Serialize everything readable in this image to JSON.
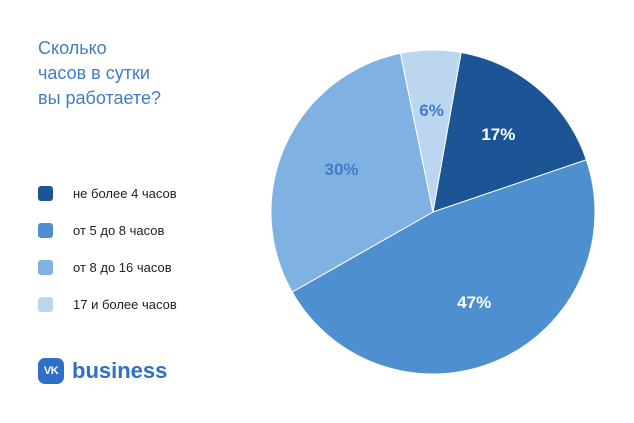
{
  "title_lines": [
    "Сколько",
    "часов в сутки",
    "вы работаете?"
  ],
  "brand": {
    "logo_text": "VK",
    "word": "business"
  },
  "chart_data": {
    "type": "pie",
    "title": "Сколько часов в сутки вы работаете?",
    "start_angle_deg": 10,
    "direction": "clockwise",
    "legend_placement": "left",
    "slices": [
      {
        "name": "не более 4 часов",
        "value": 17,
        "label": "17%",
        "color": "#1c5596",
        "label_color": "#ffffff"
      },
      {
        "name": "от 5 до 8 часов",
        "value": 47,
        "label": "47%",
        "color": "#4e8fd0",
        "label_color": "#ffffff"
      },
      {
        "name": "от 8 до 16 часов",
        "value": 30,
        "label": "30%",
        "color": "#7fb2e3",
        "label_color": "#3f7ec6"
      },
      {
        "name": "17 и более часов",
        "value": 6,
        "label": "6%",
        "color": "#bdd6ef",
        "label_color": "#3f7ec6"
      }
    ],
    "legend_order": [
      0,
      1,
      2,
      3
    ]
  }
}
